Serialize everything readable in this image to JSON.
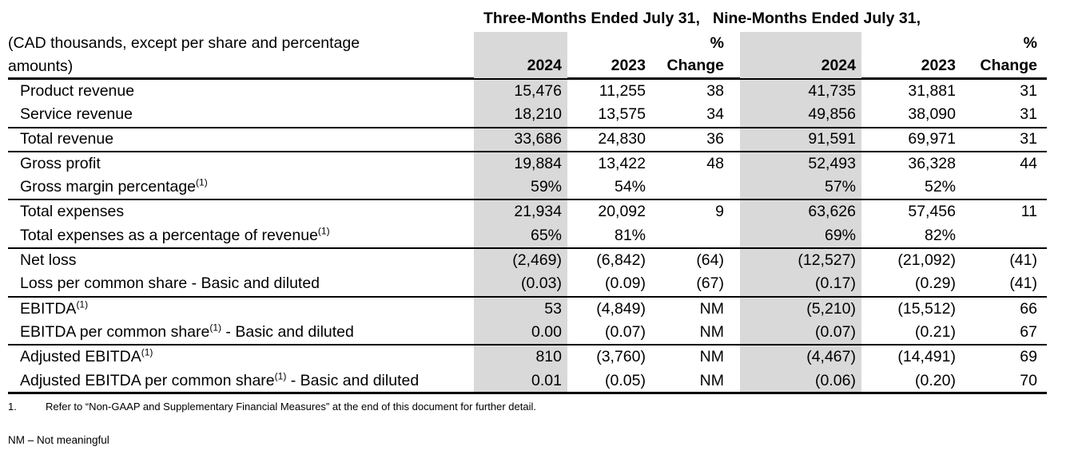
{
  "header": {
    "group_three_months": "Three-Months Ended July 31,",
    "group_nine_months": "Nine-Months Ended July 31,",
    "unit_note_line1": "(CAD thousands, except per share and percentage",
    "unit_note_line2": "amounts)",
    "year_current": "2024",
    "year_prior": "2023",
    "pct_symbol": "%",
    "change_label": "Change"
  },
  "table": {
    "rows": [
      {
        "label_pre": "Product revenue",
        "values": [
          "15,476",
          "11,255",
          "38",
          "41,735",
          "31,881",
          "31"
        ]
      },
      {
        "label_pre": "Service revenue",
        "values": [
          "18,210",
          "13,575",
          "34",
          "49,856",
          "38,090",
          "31"
        ]
      },
      {
        "label_pre": "Total revenue",
        "values": [
          "33,686",
          "24,830",
          "36",
          "91,591",
          "69,971",
          "31"
        ]
      },
      {
        "label_pre": "Gross profit",
        "values": [
          "19,884",
          "13,422",
          "48",
          "52,493",
          "36,328",
          "44"
        ]
      },
      {
        "label_pre": "Gross margin percentage",
        "sup": "(1)",
        "values": [
          "59%",
          "54%",
          "",
          "57%",
          "52%",
          ""
        ]
      },
      {
        "label_pre": "Total expenses",
        "values": [
          "21,934",
          "20,092",
          "9",
          "63,626",
          "57,456",
          "11"
        ]
      },
      {
        "label_pre": "Total expenses as a percentage of revenue",
        "sup": "(1)",
        "values": [
          "65%",
          "81%",
          "",
          "69%",
          "82%",
          ""
        ]
      },
      {
        "label_pre": "Net loss",
        "values": [
          "(2,469)",
          "(6,842)",
          "(64)",
          "(12,527)",
          "(21,092)",
          "(41)"
        ]
      },
      {
        "label_pre": "Loss per common share - Basic and diluted",
        "values": [
          "(0.03)",
          "(0.09)",
          "(67)",
          "(0.17)",
          "(0.29)",
          "(41)"
        ]
      },
      {
        "label_pre": "EBITDA",
        "sup": "(1)",
        "values": [
          "53",
          "(4,849)",
          "NM",
          "(5,210)",
          "(15,512)",
          "66"
        ]
      },
      {
        "label_pre": "EBITDA per common share",
        "sup": "(1)",
        "label_post": " - Basic and diluted",
        "values": [
          "0.00",
          "(0.07)",
          "NM",
          "(0.07)",
          "(0.21)",
          "67"
        ]
      },
      {
        "label_pre": "Adjusted EBITDA",
        "sup": "(1)",
        "values": [
          "810",
          "(3,760)",
          "NM",
          "(4,467)",
          "(14,491)",
          "69"
        ]
      },
      {
        "label_pre": "Adjusted EBITDA per common share",
        "sup": "(1)",
        "label_post": " - Basic and diluted",
        "values": [
          "0.01",
          "(0.05)",
          "NM",
          "(0.06)",
          "(0.20)",
          "70"
        ]
      }
    ]
  },
  "footnotes": {
    "marker": "1.",
    "text": "Refer to “Non-GAAP and Supplementary Financial Measures” at the end of this document for further detail.",
    "nm": "NM – Not meaningful"
  },
  "colors": {
    "shade": "#d9d9d9",
    "text": "#000000",
    "line": "#000000",
    "background": "#ffffff"
  }
}
